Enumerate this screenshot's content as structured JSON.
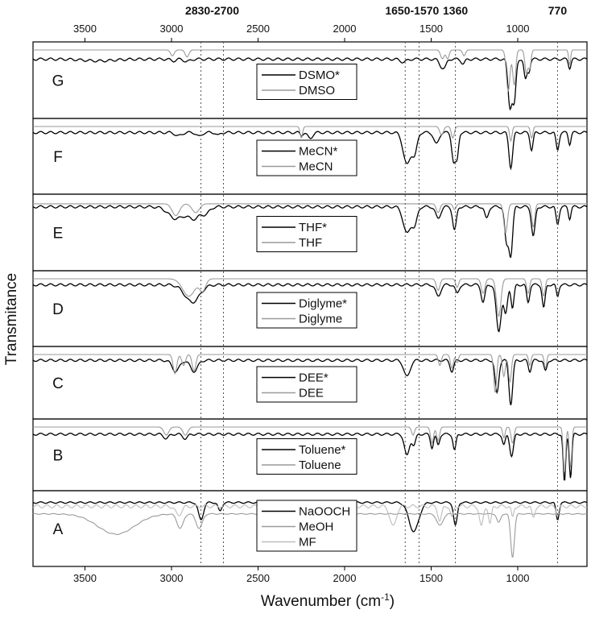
{
  "chart_data": {
    "type": "line",
    "xlabel": "Wavenumber (cm",
    "xlabel_sup": "-1",
    "xlabel_end": ")",
    "ylabel": "Transmitance",
    "xlim": [
      3800,
      600
    ],
    "x_reversed": true,
    "xticks_bottom": [
      3500,
      3000,
      2500,
      2000,
      1500,
      1000
    ],
    "xticks_top": [
      3500,
      3000,
      2500,
      2000,
      1500,
      1000
    ],
    "grid": false,
    "legend_position": "center-inside-each-panel",
    "annotations": [
      {
        "label": "2830-2700",
        "lines": [
          2830,
          2700
        ]
      },
      {
        "label": "1650-1570",
        "lines": [
          1650,
          1570
        ]
      },
      {
        "label": "1360",
        "lines": [
          1360
        ]
      },
      {
        "label": "770",
        "lines": [
          770
        ]
      }
    ],
    "colors": {
      "starred": "#000000",
      "plain": "#9a9a9a",
      "third": "#bdbdbd"
    },
    "panels": [
      {
        "letter": "G",
        "legend": [
          "DSMO*",
          "DMSO"
        ],
        "series": [
          {
            "name": "DSMO*",
            "baseline": 0.12,
            "noise": 0.015,
            "peaks": [
              [
                3420,
                0.03,
                120
              ],
              [
                2990,
                0.03,
                20
              ],
              [
                2910,
                0.04,
                25
              ],
              [
                1660,
                0.05,
                25
              ],
              [
                1440,
                0.12,
                20
              ],
              [
                1420,
                0.1,
                15
              ],
              [
                1315,
                0.08,
                15
              ],
              [
                1045,
                0.8,
                16
              ],
              [
                1020,
                0.7,
                14
              ],
              [
                955,
                0.35,
                12
              ],
              [
                935,
                0.2,
                10
              ],
              [
                700,
                0.15,
                10
              ]
            ]
          },
          {
            "name": "DMSO",
            "baseline": 0.0,
            "noise": 0.0,
            "peaks": [
              [
                2995,
                0.1,
                15
              ],
              [
                2910,
                0.12,
                15
              ],
              [
                1435,
                0.15,
                15
              ],
              [
                1405,
                0.15,
                12
              ],
              [
                1310,
                0.1,
                12
              ],
              [
                1055,
                0.7,
                15
              ],
              [
                1020,
                0.6,
                12
              ],
              [
                950,
                0.4,
                12
              ],
              [
                930,
                0.3,
                10
              ],
              [
                700,
                0.25,
                8
              ]
            ]
          }
        ]
      },
      {
        "letter": "F",
        "legend": [
          "MeCN*",
          "MeCN"
        ],
        "series": [
          {
            "name": "MeCN*",
            "baseline": 0.08,
            "noise": 0.015,
            "peaks": [
              [
                2960,
                0.06,
                25
              ],
              [
                2840,
                0.07,
                20
              ],
              [
                2730,
                0.05,
                15
              ],
              [
                2250,
                0.05,
                10
              ],
              [
                2200,
                0.1,
                20
              ],
              [
                1640,
                0.55,
                30
              ],
              [
                1595,
                0.35,
                20
              ],
              [
                1470,
                0.2,
                20
              ],
              [
                1370,
                0.5,
                15
              ],
              [
                1350,
                0.4,
                12
              ],
              [
                1040,
                0.6,
                15
              ],
              [
                920,
                0.3,
                12
              ],
              [
                770,
                0.3,
                12
              ],
              [
                700,
                0.2,
                10
              ]
            ]
          },
          {
            "name": "MeCN",
            "baseline": 0.0,
            "noise": 0.0,
            "peaks": [
              [
                2250,
                0.2,
                10
              ],
              [
                1440,
                0.15,
                15
              ],
              [
                1375,
                0.2,
                12
              ],
              [
                1040,
                0.25,
                10
              ],
              [
                920,
                0.2,
                10
              ]
            ]
          }
        ]
      },
      {
        "letter": "E",
        "legend": [
          "THF*",
          "THF"
        ],
        "series": [
          {
            "name": "THF*",
            "baseline": 0.06,
            "noise": 0.015,
            "peaks": [
              [
                2975,
                0.2,
                60
              ],
              [
                2870,
                0.2,
                50
              ],
              [
                2800,
                0.1,
                30
              ],
              [
                1640,
                0.45,
                30
              ],
              [
                1595,
                0.3,
                20
              ],
              [
                1460,
                0.2,
                20
              ],
              [
                1365,
                0.4,
                15
              ],
              [
                1180,
                0.2,
                15
              ],
              [
                1065,
                0.6,
                15
              ],
              [
                1040,
                0.8,
                15
              ],
              [
                910,
                0.5,
                15
              ],
              [
                770,
                0.3,
                12
              ],
              [
                700,
                0.2,
                10
              ]
            ]
          },
          {
            "name": "THF",
            "baseline": 0.02,
            "noise": 0.0,
            "peaks": [
              [
                2975,
                0.2,
                30
              ],
              [
                2860,
                0.15,
                30
              ],
              [
                1460,
                0.15,
                15
              ],
              [
                1365,
                0.1,
                12
              ],
              [
                1070,
                0.5,
                15
              ],
              [
                910,
                0.4,
                12
              ]
            ]
          }
        ]
      },
      {
        "letter": "D",
        "legend": [
          "Diglyme*",
          "Diglyme"
        ],
        "series": [
          {
            "name": "Diglyme*",
            "baseline": 0.08,
            "noise": 0.015,
            "peaks": [
              [
                2880,
                0.3,
                60
              ],
              [
                1460,
                0.2,
                20
              ],
              [
                1350,
                0.15,
                15
              ],
              [
                1200,
                0.3,
                15
              ],
              [
                1110,
                0.8,
                20
              ],
              [
                1070,
                0.5,
                15
              ],
              [
                1030,
                0.4,
                12
              ],
              [
                940,
                0.3,
                12
              ],
              [
                850,
                0.4,
                12
              ],
              [
                770,
                0.2,
                10
              ]
            ]
          },
          {
            "name": "Diglyme",
            "baseline": 0.0,
            "noise": 0.0,
            "peaks": [
              [
                2900,
                0.3,
                50
              ],
              [
                2820,
                0.2,
                25
              ],
              [
                1460,
                0.2,
                15
              ],
              [
                1350,
                0.15,
                12
              ],
              [
                1200,
                0.25,
                15
              ],
              [
                1110,
                0.65,
                18
              ],
              [
                940,
                0.25,
                12
              ],
              [
                850,
                0.3,
                12
              ]
            ]
          }
        ]
      },
      {
        "letter": "C",
        "legend": [
          "DEE*",
          "DEE"
        ],
        "series": [
          {
            "name": "DEE*",
            "baseline": 0.08,
            "noise": 0.015,
            "peaks": [
              [
                2975,
                0.2,
                30
              ],
              [
                2870,
                0.2,
                30
              ],
              [
                1640,
                0.3,
                25
              ],
              [
                1380,
                0.2,
                15
              ],
              [
                1120,
                0.6,
                15
              ],
              [
                1040,
                0.8,
                15
              ],
              [
                930,
                0.2,
                12
              ],
              [
                840,
                0.2,
                12
              ]
            ]
          },
          {
            "name": "DEE",
            "baseline": 0.0,
            "noise": 0.0,
            "peaks": [
              [
                2980,
                0.35,
                15
              ],
              [
                2930,
                0.2,
                15
              ],
              [
                2870,
                0.3,
                15
              ],
              [
                1450,
                0.2,
                12
              ],
              [
                1380,
                0.25,
                12
              ],
              [
                1350,
                0.15,
                10
              ],
              [
                1130,
                0.7,
                12
              ],
              [
                1080,
                0.4,
                12
              ],
              [
                1045,
                0.5,
                12
              ],
              [
                930,
                0.2,
                10
              ],
              [
                840,
                0.25,
                10
              ]
            ]
          }
        ]
      },
      {
        "letter": "B",
        "legend": [
          "Toluene*",
          "Toluene"
        ],
        "series": [
          {
            "name": "Toluene*",
            "baseline": 0.1,
            "noise": 0.015,
            "peaks": [
              [
                3030,
                0.08,
                20
              ],
              [
                2920,
                0.08,
                20
              ],
              [
                1640,
                0.4,
                20
              ],
              [
                1600,
                0.2,
                15
              ],
              [
                1495,
                0.25,
                12
              ],
              [
                1460,
                0.2,
                12
              ],
              [
                1365,
                0.3,
                12
              ],
              [
                1080,
                0.2,
                12
              ],
              [
                1035,
                0.4,
                15
              ],
              [
                730,
                0.9,
                10
              ],
              [
                695,
                0.8,
                10
              ]
            ]
          },
          {
            "name": "Toluene",
            "baseline": 0.0,
            "noise": 0.0,
            "peaks": [
              [
                3030,
                0.15,
                20
              ],
              [
                2920,
                0.15,
                20
              ],
              [
                1605,
                0.15,
                12
              ],
              [
                1495,
                0.3,
                12
              ],
              [
                1460,
                0.25,
                12
              ],
              [
                1080,
                0.2,
                10
              ],
              [
                1030,
                0.3,
                12
              ],
              [
                730,
                0.85,
                10
              ],
              [
                695,
                0.75,
                10
              ]
            ]
          }
        ]
      },
      {
        "letter": "A",
        "legend": [
          "NaOOCH",
          "MeOH",
          "MF"
        ],
        "series": [
          {
            "name": "NaOOCH",
            "baseline": 0.05,
            "noise": 0.01,
            "peaks": [
              [
                2830,
                0.3,
                20
              ],
              [
                2720,
                0.15,
                15
              ],
              [
                1600,
                0.5,
                40
              ],
              [
                1360,
                0.4,
                15
              ],
              [
                770,
                0.3,
                12
              ]
            ]
          },
          {
            "name": "MeOH",
            "baseline": 0.2,
            "noise": 0.005,
            "peaks": [
              [
                3320,
                0.35,
                150
              ],
              [
                2950,
                0.25,
                25
              ],
              [
                2840,
                0.25,
                25
              ],
              [
                1450,
                0.2,
                25
              ],
              [
                1110,
                0.15,
                15
              ],
              [
                1030,
                0.75,
                15
              ]
            ]
          },
          {
            "name": "MF",
            "baseline": 0.1,
            "noise": 0.02,
            "peaks": [
              [
                2960,
                0.15,
                25
              ],
              [
                1720,
                0.35,
                25
              ],
              [
                1450,
                0.25,
                15
              ],
              [
                1380,
                0.2,
                12
              ],
              [
                1210,
                0.35,
                15
              ],
              [
                1160,
                0.3,
                12
              ],
              [
                1030,
                0.2,
                10
              ],
              [
                910,
                0.2,
                12
              ],
              [
                770,
                0.15,
                10
              ]
            ]
          }
        ]
      }
    ]
  }
}
